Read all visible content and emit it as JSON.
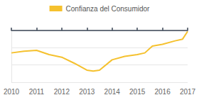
{
  "chart_data": {
    "type": "line",
    "x": [
      2010.0,
      2010.5,
      2011.0,
      2011.5,
      2012.0,
      2012.5,
      2013.0,
      2013.25,
      2013.5,
      2014.0,
      2014.5,
      2015.0,
      2015.3,
      2015.6,
      2016.0,
      2016.5,
      2016.8,
      2017.0
    ],
    "series": [
      {
        "name": "Confianza del Consumidor",
        "color": "#f5c12e",
        "values": [
          -26,
          -24,
          -23,
          -28,
          -31,
          -38,
          -46,
          -47,
          -46,
          -34,
          -30,
          -28,
          -26,
          -18,
          -16,
          -12,
          -10,
          -1
        ]
      }
    ],
    "xlim": [
      2010,
      2017
    ],
    "xticks": [
      2010,
      2011,
      2012,
      2013,
      2014,
      2015,
      2016,
      2017
    ],
    "ylim": [
      -60,
      0
    ],
    "yticks": [
      -60,
      -40,
      -20,
      0
    ],
    "grid": true,
    "legend": "top",
    "tick_labels": "x"
  }
}
